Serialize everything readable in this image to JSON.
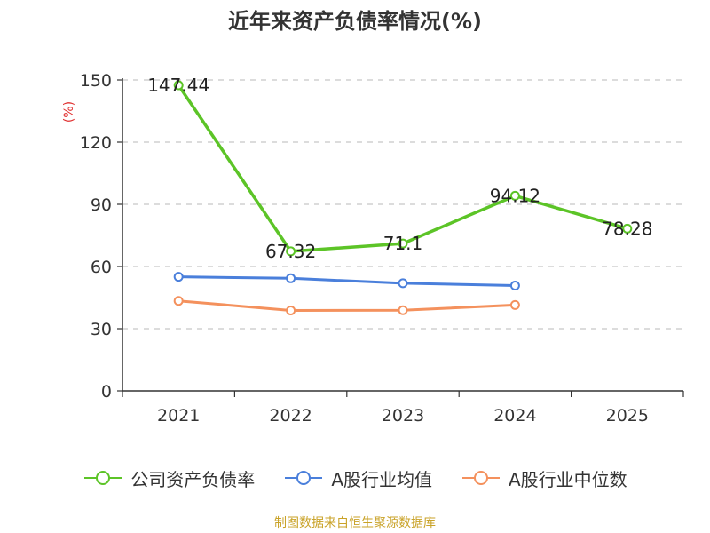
{
  "chart_data": {
    "type": "line",
    "title": "近年来资产负债率情况(%)",
    "ylabel": "(%)",
    "xlabel": "",
    "categories": [
      "2021",
      "2022",
      "2023",
      "2024",
      "2025"
    ],
    "ylim": [
      0,
      150
    ],
    "yticks": [
      0,
      30,
      60,
      90,
      120,
      150
    ],
    "grid": true,
    "legend_position": "bottom",
    "series": [
      {
        "name": "公司资产负债率",
        "color": "#5cc427",
        "values": [
          147.44,
          67.32,
          71.1,
          94.12,
          78.28
        ],
        "labels": [
          "147.44",
          "67.32",
          "71.1",
          "94.12",
          "78.28"
        ]
      },
      {
        "name": "A股行业均值",
        "color": "#4a7fdb",
        "values": [
          55.0,
          54.3,
          51.9,
          50.8,
          null
        ]
      },
      {
        "name": "A股行业中位数",
        "color": "#f4915d",
        "values": [
          43.4,
          38.8,
          38.9,
          41.4,
          null
        ]
      }
    ]
  },
  "source_text": "制图数据来自恒生聚源数据库"
}
